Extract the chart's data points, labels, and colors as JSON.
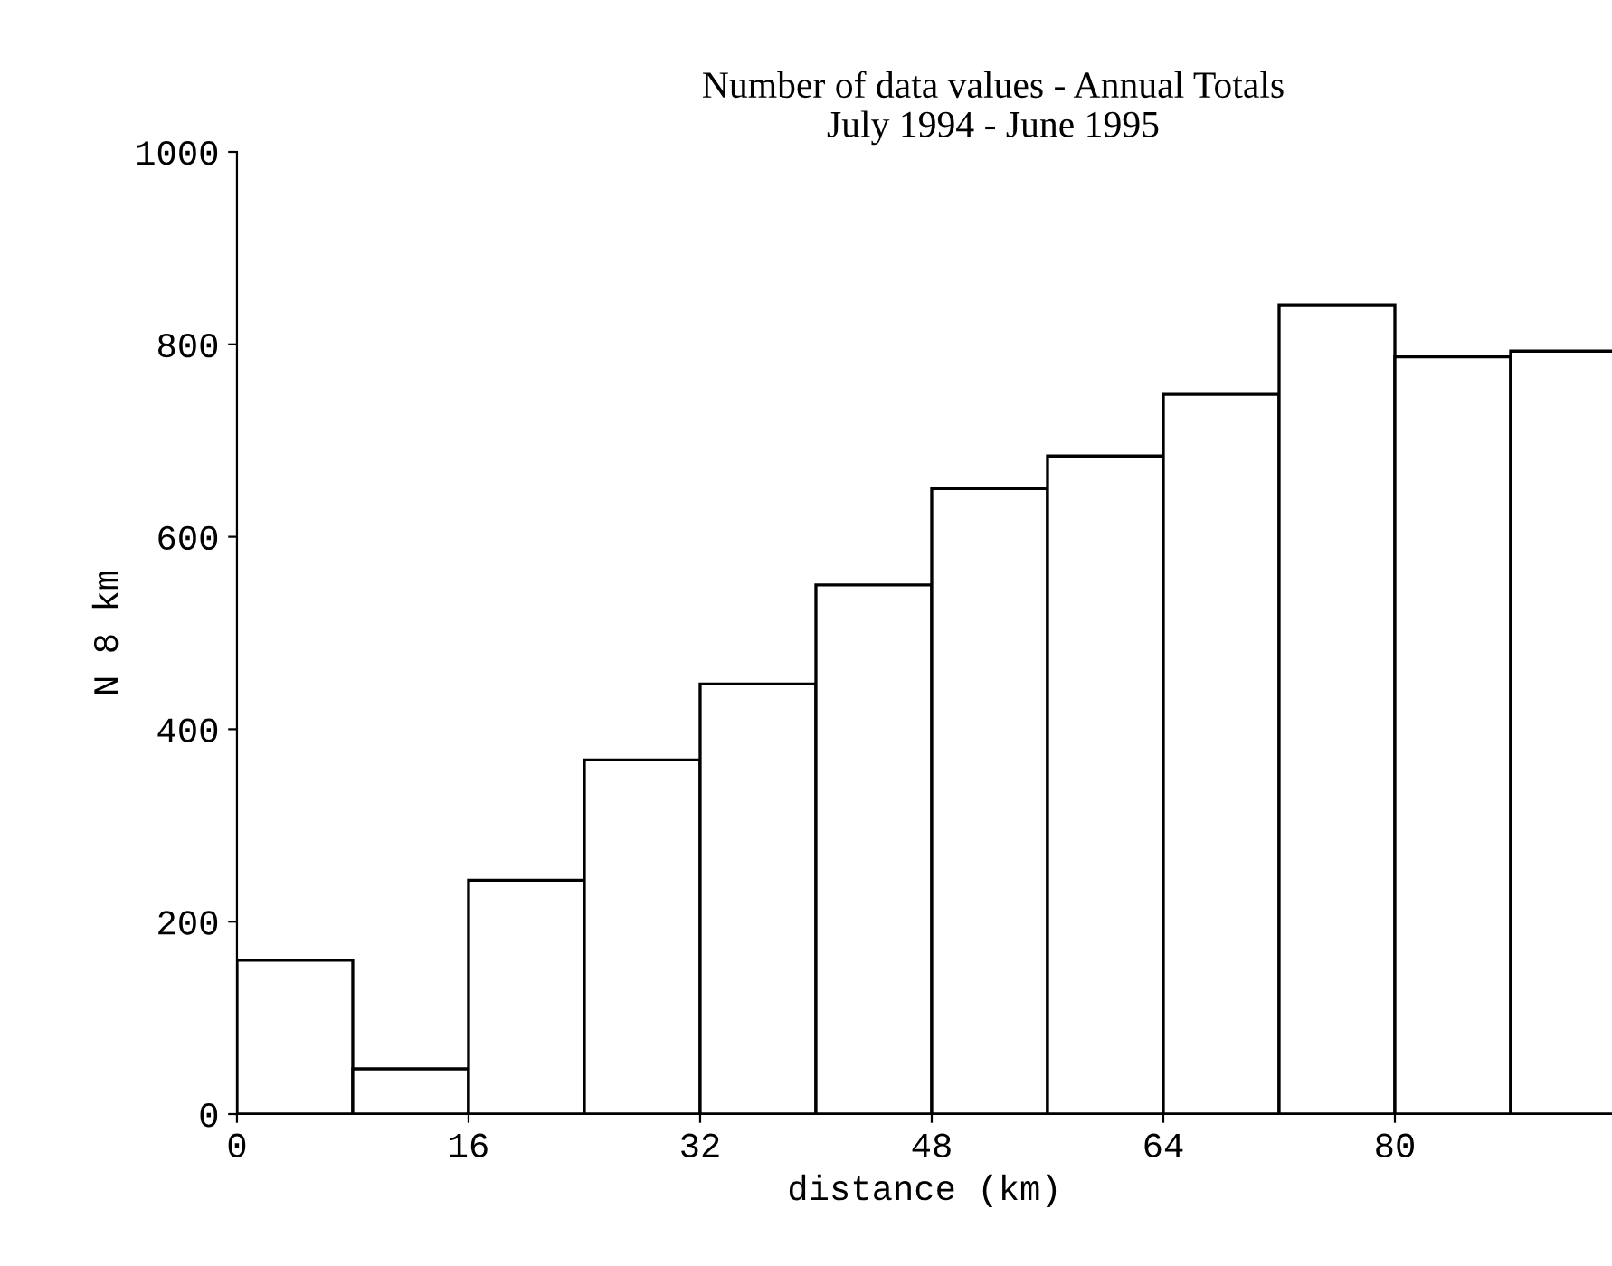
{
  "chart_data": {
    "type": "histogram",
    "title": "Number of data values - Annual Totals\nJuly 1994 - June 1995",
    "xlabel": "distance (km)",
    "ylabel": "N 8 km",
    "bins": [
      0,
      8,
      16,
      24,
      32,
      40,
      48,
      56,
      64,
      72,
      80,
      88,
      96
    ],
    "values": [
      160,
      47,
      243,
      368,
      447,
      550,
      650,
      684,
      748,
      841,
      787,
      793
    ],
    "color": "#ffffff",
    "xlim": [
      0,
      95
    ],
    "ylim": [
      0,
      1000
    ],
    "xticks": [
      0,
      16,
      32,
      48,
      64,
      80
    ],
    "yticks": [
      0,
      200,
      400,
      600,
      800,
      1000
    ],
    "grid": false
  }
}
